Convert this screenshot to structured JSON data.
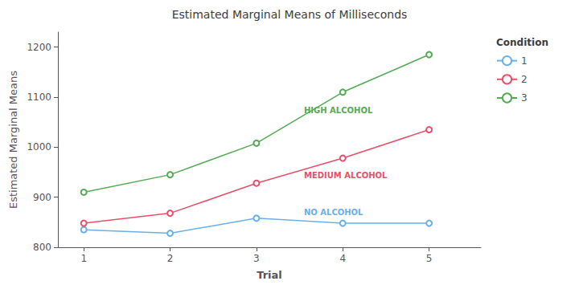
{
  "chart_data": {
    "type": "line",
    "title": "Estimated Marginal Means of Milliseconds",
    "xlabel": "Trial",
    "ylabel": "Estimated Marginal Means",
    "x": [
      1,
      2,
      3,
      4,
      5
    ],
    "series": [
      {
        "name": "1",
        "color": "#6ab0e8",
        "values": [
          835,
          828,
          858,
          848,
          848
        ],
        "annotation": {
          "text": "NO ALCOHOL",
          "x": 3.55,
          "y": 862
        }
      },
      {
        "name": "2",
        "color": "#e8506a",
        "values": [
          848,
          868,
          928,
          978,
          1035
        ],
        "annotation": {
          "text": "MEDIUM ALCOHOL",
          "x": 3.55,
          "y": 935
        }
      },
      {
        "name": "3",
        "color": "#55aa55",
        "values": [
          910,
          945,
          1008,
          1110,
          1185
        ],
        "annotation": {
          "text": "HIGH ALCOHOL",
          "x": 3.55,
          "y": 1065
        }
      }
    ],
    "legend_title": "Condition",
    "legend": "right",
    "marker": "circle",
    "xlim": [
      0.7,
      5.6
    ],
    "xticks": [
      1,
      2,
      3,
      4,
      5
    ],
    "ylim": [
      800,
      1230
    ],
    "yticks": [
      800,
      900,
      1000,
      1100,
      1200
    ],
    "grid": false
  }
}
